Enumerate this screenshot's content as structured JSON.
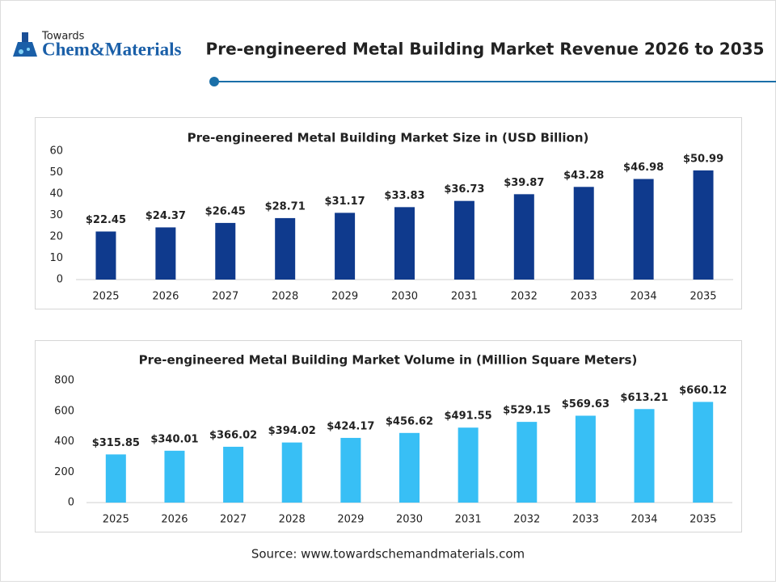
{
  "header": {
    "logo_small": "Towards",
    "logo_main": "Chem&Materials",
    "title": "Pre-engineered Metal Building Market Revenue 2026 to 2035"
  },
  "chart_data": [
    {
      "type": "bar",
      "title": "Pre-engineered Metal Building Market Size in (USD Billion)",
      "categories": [
        "2025",
        "2026",
        "2027",
        "2028",
        "2029",
        "2030",
        "2031",
        "2032",
        "2033",
        "2034",
        "2035"
      ],
      "values": [
        22.45,
        24.37,
        26.45,
        28.71,
        31.17,
        33.83,
        36.73,
        39.87,
        43.28,
        46.98,
        50.99
      ],
      "value_labels": [
        "$22.45",
        "$24.37",
        "$26.45",
        "$28.71",
        "$31.17",
        "$33.83",
        "$36.73",
        "$39.87",
        "$43.28",
        "$46.98",
        "$50.99"
      ],
      "color": "#0f3a8d",
      "ylim": [
        0,
        60
      ],
      "yticks": [
        0,
        10,
        20,
        30,
        40,
        50,
        60
      ],
      "grid": false
    },
    {
      "type": "bar",
      "title": "Pre-engineered Metal Building Market Volume in (Million Square Meters)",
      "categories": [
        "2025",
        "2026",
        "2027",
        "2028",
        "2029",
        "2030",
        "2031",
        "2032",
        "2033",
        "2034",
        "2035"
      ],
      "values": [
        315.85,
        340.01,
        366.02,
        394.02,
        424.17,
        456.62,
        491.55,
        529.15,
        569.63,
        613.21,
        660.12
      ],
      "value_labels": [
        "$315.85",
        "$340.01",
        "$366.02",
        "$394.02",
        "$424.17",
        "$456.62",
        "$491.55",
        "$529.15",
        "$569.63",
        "$613.21",
        "$660.12"
      ],
      "color": "#38bff5",
      "ylim": [
        0,
        800
      ],
      "yticks": [
        0,
        200,
        400,
        600,
        800
      ],
      "grid": false
    }
  ],
  "source": "Source: www.towardschemandmaterials.com"
}
